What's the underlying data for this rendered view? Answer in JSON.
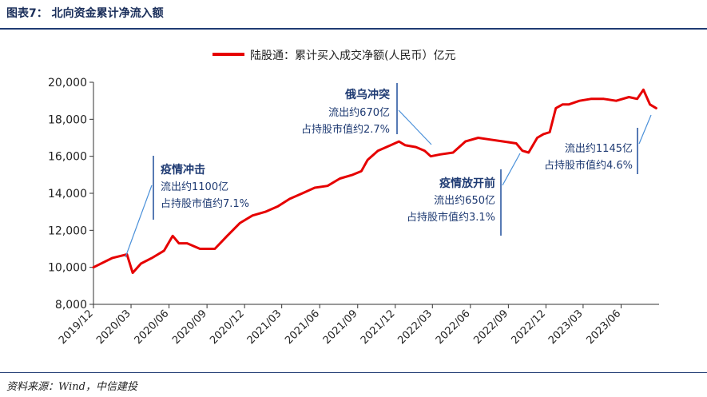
{
  "header": {
    "title": "图表7： 北向资金累计净流入额"
  },
  "footer": {
    "source": "资料来源：Wind，中信建投"
  },
  "chart_data": {
    "type": "line",
    "title": "图表7： 北向资金累计净流入额",
    "xlabel": "",
    "ylabel": "",
    "ylim": [
      8000,
      20000
    ],
    "yticks": [
      "8,000",
      "10,000",
      "12,000",
      "14,000",
      "16,000",
      "18,000",
      "20,000"
    ],
    "xticks": [
      "2019/12",
      "2020/03",
      "2020/06",
      "2020/09",
      "2020/12",
      "2021/03",
      "2021/06",
      "2021/09",
      "2021/12",
      "2022/03",
      "2022/06",
      "2022/09",
      "2022/12",
      "2023/03",
      "2023/06"
    ],
    "legend": "top-center",
    "series": [
      {
        "name": "陆股通：累计买入成交净额(人民币）亿元",
        "color": "#e60000",
        "x": [
          "2019/12/01",
          "2020/01/15",
          "2020/02/20",
          "2020/03/05",
          "2020/03/25",
          "2020/04/20",
          "2020/05/20",
          "2020/06/10",
          "2020/06/25",
          "2020/07/15",
          "2020/08/15",
          "2020/09/20",
          "2020/10/20",
          "2020/11/20",
          "2020/12/20",
          "2021/01/20",
          "2021/02/20",
          "2021/03/20",
          "2021/04/20",
          "2021/05/20",
          "2021/06/20",
          "2021/07/20",
          "2021/08/20",
          "2021/09/10",
          "2021/09/25",
          "2021/10/20",
          "2021/11/20",
          "2021/12/10",
          "2021/12/25",
          "2022/01/20",
          "2022/02/10",
          "2022/02/25",
          "2022/03/20",
          "2022/04/20",
          "2022/05/20",
          "2022/06/20",
          "2022/07/20",
          "2022/08/20",
          "2022/09/20",
          "2022/10/05",
          "2022/10/20",
          "2022/11/10",
          "2022/11/25",
          "2022/12/10",
          "2022/12/25",
          "2023/01/10",
          "2023/01/25",
          "2023/02/20",
          "2023/03/20",
          "2023/04/20",
          "2023/05/20",
          "2023/06/20",
          "2023/07/10",
          "2023/07/25",
          "2023/08/10",
          "2023/08/25"
        ],
        "values": [
          10000,
          10500,
          10700,
          9700,
          10200,
          10500,
          10900,
          11700,
          11300,
          11300,
          11000,
          11000,
          11700,
          12400,
          12800,
          13000,
          13300,
          13700,
          14000,
          14300,
          14400,
          14800,
          15000,
          15200,
          15800,
          16300,
          16600,
          16800,
          16600,
          16500,
          16300,
          16000,
          16100,
          16200,
          16800,
          17000,
          16900,
          16800,
          16700,
          16300,
          16200,
          17000,
          17200,
          17300,
          18600,
          18800,
          18800,
          19000,
          19100,
          19100,
          19000,
          19200,
          19100,
          19600,
          18800,
          18600
        ]
      }
    ],
    "annotations": [
      {
        "title": "疫情冲击",
        "line1": "流出约1100亿",
        "line2": "占持股市值约7.1%"
      },
      {
        "title": "俄乌冲突",
        "line1": "流出约670亿",
        "line2": "占持股市值约2.7%"
      },
      {
        "title": "疫情放开前",
        "line1": "流出约650亿",
        "line2": "占持股市值约3.1%"
      },
      {
        "title": "",
        "line1": "流出约1145亿",
        "line2": "占持股市值约4.6%"
      }
    ]
  }
}
